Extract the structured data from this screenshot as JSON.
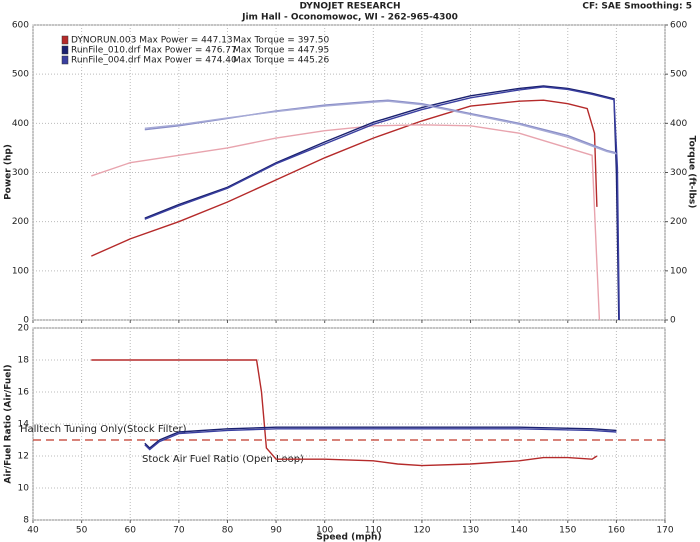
{
  "chart_data": [
    {
      "type": "line",
      "title": "DYNOJET RESEARCH",
      "subtitle": "Jim Hall - Oconomowoc, WI - 262-965-4300",
      "note": "CF: SAE  Smoothing: 5",
      "y_label": "Power (hp)",
      "y2_label": "Torque (ft-lbs)",
      "xlim": [
        40,
        170
      ],
      "xticks": [
        40,
        50,
        60,
        70,
        80,
        90,
        100,
        110,
        120,
        130,
        140,
        150,
        160,
        170
      ],
      "ylim": [
        0,
        600
      ],
      "yticks": [
        0,
        100,
        200,
        300,
        400,
        500,
        600
      ],
      "y2lim": [
        0,
        600
      ],
      "y2ticks": [
        0,
        100,
        200,
        300,
        400,
        500,
        600
      ],
      "grid": true,
      "series": [
        {
          "name": "DYNORUN.003 Max Power = 447.13",
          "color": "#b52a2a",
          "x": [
            52,
            60,
            70,
            80,
            90,
            100,
            110,
            120,
            130,
            140,
            145,
            150,
            154,
            155.5,
            156
          ],
          "values": [
            130,
            165,
            200,
            240,
            285,
            330,
            370,
            405,
            435,
            445,
            447,
            440,
            430,
            380,
            230
          ]
        },
        {
          "name": "Max Torque = 397.50",
          "color": "#e8a4ae",
          "axis": "y2",
          "x": [
            52,
            60,
            70,
            80,
            90,
            100,
            110,
            120,
            130,
            140,
            150,
            155,
            156.5
          ],
          "values": [
            293,
            320,
            335,
            350,
            370,
            385,
            395,
            397,
            395,
            380,
            350,
            335,
            0
          ]
        },
        {
          "name": "RunFile_010.drf Max Power = 476.77",
          "color": "#1a2170",
          "x": [
            63,
            70,
            80,
            90,
            100,
            110,
            120,
            130,
            140,
            145,
            150,
            155,
            159.5,
            160,
            160.5
          ],
          "values": [
            207,
            235,
            270,
            320,
            362,
            402,
            432,
            456,
            471,
            476,
            471,
            461,
            450,
            300,
            0
          ]
        },
        {
          "name": "Max Torque = 447.95",
          "color": "#8a8ec8",
          "axis": "y2",
          "x": [
            63,
            70,
            80,
            90,
            100,
            110,
            113,
            120,
            130,
            140,
            150,
            158,
            160
          ],
          "values": [
            387,
            395,
            410,
            425,
            437,
            445,
            447,
            440,
            420,
            400,
            375,
            345,
            340
          ]
        },
        {
          "name": "RunFile_004.drf Max Power = 474.40",
          "color": "#3a3fa0",
          "x": [
            63,
            70,
            80,
            90,
            100,
            110,
            120,
            130,
            140,
            145,
            150,
            155,
            159.5,
            160.2,
            160.6
          ],
          "values": [
            205,
            232,
            268,
            318,
            358,
            398,
            428,
            452,
            468,
            474,
            469,
            459,
            448,
            310,
            0
          ]
        },
        {
          "name": "Max Torque = 445.26",
          "color": "#a6aad6",
          "axis": "y2",
          "x": [
            63,
            70,
            80,
            90,
            100,
            110,
            113,
            120,
            130,
            140,
            150,
            158,
            160
          ],
          "values": [
            390,
            397,
            411,
            424,
            435,
            443,
            445,
            438,
            418,
            398,
            372,
            343,
            338
          ]
        }
      ]
    },
    {
      "type": "line",
      "y_label": "Air/Fuel Ratio (Air/Fuel)",
      "x_label": "Speed (mph)",
      "xlim": [
        40,
        170
      ],
      "xticks": [
        40,
        50,
        60,
        70,
        80,
        90,
        100,
        110,
        120,
        130,
        140,
        150,
        160,
        170
      ],
      "ylim": [
        8,
        20
      ],
      "yticks": [
        8,
        10,
        12,
        14,
        16,
        18,
        20
      ],
      "grid": true,
      "reference_line": {
        "value": 13,
        "color": "#c0392b"
      },
      "annotations": [
        "Halltech Tuning Only(Stock Filter)",
        "Stock Air Fuel Ratio (Open Loop)"
      ],
      "series": [
        {
          "color": "#b52a2a",
          "x": [
            52,
            86,
            87,
            88,
            90,
            100,
            110,
            115,
            120,
            130,
            140,
            145,
            150,
            155,
            156
          ],
          "values": [
            18,
            18,
            16,
            12.5,
            11.8,
            11.8,
            11.7,
            11.5,
            11.4,
            11.5,
            11.7,
            11.9,
            11.9,
            11.8,
            12
          ]
        },
        {
          "color": "#1a2170",
          "x": [
            63,
            64,
            66,
            70,
            80,
            90,
            100,
            120,
            140,
            155,
            160
          ],
          "values": [
            12.8,
            12.5,
            13,
            13.5,
            13.7,
            13.8,
            13.8,
            13.8,
            13.8,
            13.7,
            13.6
          ]
        },
        {
          "color": "#3a3fa0",
          "x": [
            63,
            64,
            66,
            70,
            80,
            90,
            100,
            120,
            140,
            155,
            160
          ],
          "values": [
            12.7,
            12.4,
            12.9,
            13.4,
            13.6,
            13.7,
            13.7,
            13.7,
            13.7,
            13.6,
            13.5
          ]
        }
      ]
    }
  ]
}
